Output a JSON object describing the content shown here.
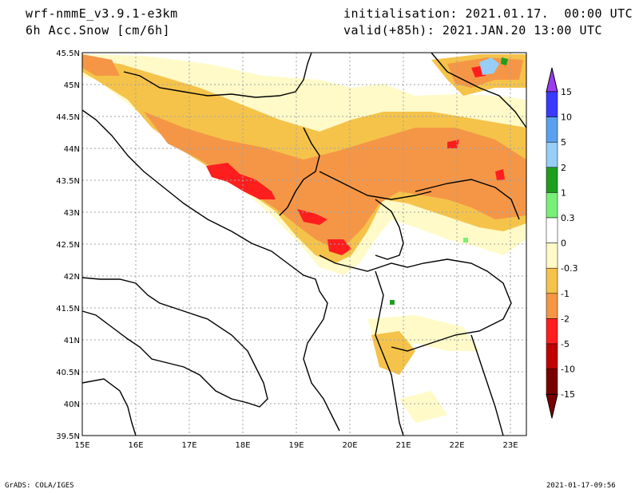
{
  "header": {
    "model": "wrf-nmmE_v3.9.1-e3km",
    "field": "6h Acc.Snow [cm/6h]",
    "init": "initialisation: 2021.01.17.  00:00 UTC",
    "valid": "valid(+85h): 2021.JAN.20 13:00 UTC"
  },
  "map": {
    "lon_labels": [
      "15E",
      "16E",
      "17E",
      "18E",
      "19E",
      "20E",
      "21E",
      "22E",
      "23E"
    ],
    "lat_labels": [
      "45.5N",
      "45N",
      "44.5N",
      "44N",
      "43.5N",
      "43N",
      "42.5N",
      "42N",
      "41.5N",
      "41N",
      "40.5N",
      "40N",
      "39.5N"
    ]
  },
  "colorbar": {
    "labels": [
      "15",
      "10",
      "5",
      "2",
      "1",
      "0.3",
      "0",
      "-0.3",
      "-1",
      "-2",
      "-5",
      "-10",
      "-15"
    ],
    "colors": [
      "#6a00dc",
      "#3a3aff",
      "#5aa0ee",
      "#96cef8",
      "#1e9e1e",
      "#78f078",
      "#ffffff",
      "#fffac8",
      "#f5c34a",
      "#f59646",
      "#ff1e1e",
      "#c00000",
      "#7a0000"
    ]
  },
  "footer": {
    "left": "GrADS: COLA/IGES",
    "right": "2021-01-17-09:56"
  }
}
